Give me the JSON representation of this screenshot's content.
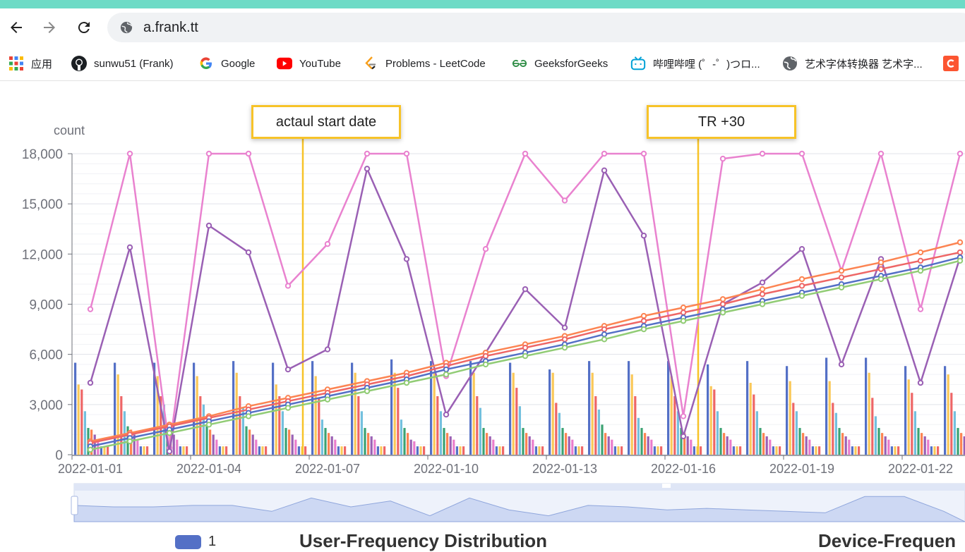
{
  "browser": {
    "url": "a.frank.tt",
    "bookmarks": [
      {
        "label": "应用",
        "icon": "apps-grid-icon"
      },
      {
        "label": "sunwu51 (Frank)",
        "icon": "github-icon"
      },
      {
        "label": "Google",
        "icon": "google-icon"
      },
      {
        "label": "YouTube",
        "icon": "youtube-icon"
      },
      {
        "label": "Problems - LeetCode",
        "icon": "leetcode-icon"
      },
      {
        "label": "GeeksforGeeks",
        "icon": "geeksforgeeks-icon"
      },
      {
        "label": "哔哩哔哩 (゜-゜)つロ...",
        "icon": "bilibili-icon"
      },
      {
        "label": "艺术字体转换器 艺术字...",
        "icon": "globe-icon"
      }
    ]
  },
  "annotations": {
    "start": "actaul start date",
    "tr": "TR +30"
  },
  "legend": {
    "label": "1",
    "color": "#5470c6"
  },
  "sections": {
    "user": "User-Frequency Distribution",
    "device": "Device-Frequen"
  },
  "chart_data": {
    "type": "line",
    "ylabel": "count",
    "ylim": [
      0,
      18000
    ],
    "yticks": [
      "0",
      "3,000",
      "6,000",
      "9,000",
      "12,000",
      "15,000",
      "18,000"
    ],
    "xtick_labels": [
      "2022-01-01",
      "2022-01-04",
      "2022-01-07",
      "2022-01-10",
      "2022-01-13",
      "2022-01-16",
      "2022-01-19",
      "2022-01-22"
    ],
    "x": [
      "2022-01-01",
      "2022-01-02",
      "2022-01-03",
      "2022-01-04",
      "2022-01-05",
      "2022-01-06",
      "2022-01-07",
      "2022-01-08",
      "2022-01-09",
      "2022-01-10",
      "2022-01-11",
      "2022-01-12",
      "2022-01-13",
      "2022-01-14",
      "2022-01-15",
      "2022-01-16",
      "2022-01-17",
      "2022-01-18",
      "2022-01-19",
      "2022-01-20",
      "2022-01-21",
      "2022-01-22",
      "2022-01-23"
    ],
    "markers": [
      {
        "label": "actaul start date",
        "x": "2022-01-07"
      },
      {
        "label": "TR +30",
        "x": "2022-01-17"
      }
    ],
    "lines": [
      {
        "color": "#e982cf",
        "values": [
          8700,
          18000,
          400,
          18000,
          18000,
          10100,
          12600,
          18000,
          18000,
          4700,
          12300,
          18000,
          15200,
          18000,
          18000,
          2300,
          17700,
          18000,
          18000,
          11000,
          18000,
          8700,
          18000
        ]
      },
      {
        "color": "#9a60b4",
        "values": [
          4300,
          12400,
          200,
          13700,
          12100,
          5100,
          6300,
          17100,
          11700,
          2400,
          6100,
          9900,
          7600,
          17000,
          13100,
          1100,
          9000,
          10300,
          12300,
          5400,
          11700,
          4300,
          11800
        ]
      },
      {
        "color": "#fc8452",
        "values": [
          800,
          1300,
          1800,
          2300,
          2900,
          3400,
          3900,
          4400,
          4900,
          5500,
          6100,
          6600,
          7100,
          7700,
          8300,
          8800,
          9300,
          9900,
          10500,
          11000,
          11500,
          12100,
          12700
        ]
      },
      {
        "color": "#ee6666",
        "values": [
          700,
          1200,
          1700,
          2200,
          2700,
          3200,
          3700,
          4200,
          4700,
          5300,
          5900,
          6400,
          6900,
          7500,
          8000,
          8500,
          9000,
          9600,
          10100,
          10600,
          11100,
          11600,
          12100
        ]
      },
      {
        "color": "#5470c6",
        "values": [
          500,
          1000,
          1500,
          2000,
          2500,
          3000,
          3500,
          4000,
          4500,
          5100,
          5600,
          6100,
          6600,
          7200,
          7700,
          8200,
          8700,
          9200,
          9700,
          10200,
          10700,
          11200,
          11800
        ]
      },
      {
        "color": "#91cc75",
        "values": [
          300,
          800,
          1300,
          1800,
          2300,
          2800,
          3300,
          3800,
          4300,
          4800,
          5400,
          5900,
          6400,
          6900,
          7500,
          8000,
          8500,
          9000,
          9500,
          10000,
          10500,
          11000,
          11600
        ]
      }
    ],
    "bar_colors": [
      "#5470c6",
      "#fac858",
      "#ee6666",
      "#73c0de",
      "#3ba272",
      "#fc8452",
      "#9a60b4",
      "#ea7ccc",
      "#5470c6",
      "#fac858",
      "#ee6666"
    ],
    "bar_groups": [
      [
        5500,
        4200,
        3900,
        2600,
        1600,
        1500,
        1200,
        900,
        500,
        500,
        500
      ],
      [
        5500,
        4800,
        3500,
        2600,
        1700,
        1500,
        1200,
        900,
        500,
        500,
        500
      ],
      [
        5500,
        4700,
        3500,
        3000,
        1700,
        1500,
        1200,
        900,
        500,
        500,
        500
      ],
      [
        5500,
        4700,
        3500,
        3000,
        1700,
        1500,
        1200,
        900,
        500,
        500,
        500
      ],
      [
        5600,
        4900,
        3500,
        2800,
        1700,
        1500,
        1200,
        900,
        500,
        500,
        500
      ],
      [
        5500,
        4200,
        3500,
        2600,
        1600,
        1500,
        1200,
        900,
        500,
        500,
        500
      ],
      [
        5600,
        4700,
        3400,
        2100,
        1600,
        1300,
        1100,
        900,
        500,
        500,
        500
      ],
      [
        5500,
        4900,
        3500,
        2600,
        1600,
        1300,
        1100,
        900,
        500,
        500,
        500
      ],
      [
        5700,
        4900,
        4000,
        2100,
        1600,
        1300,
        900,
        800,
        500,
        500,
        500
      ],
      [
        5600,
        4900,
        3500,
        2600,
        1600,
        1300,
        1100,
        900,
        500,
        500,
        500
      ],
      [
        5600,
        4900,
        3500,
        2800,
        1600,
        1300,
        1100,
        900,
        500,
        500,
        500
      ],
      [
        5500,
        4900,
        4000,
        2900,
        1600,
        1300,
        1100,
        900,
        500,
        500,
        500
      ],
      [
        5100,
        4900,
        3100,
        2500,
        1600,
        1300,
        1100,
        900,
        500,
        500,
        500
      ],
      [
        5600,
        4900,
        3500,
        2700,
        1800,
        1300,
        1100,
        900,
        500,
        500,
        500
      ],
      [
        5600,
        4800,
        3500,
        2200,
        1600,
        1300,
        1100,
        900,
        500,
        500,
        500
      ],
      [
        5600,
        4700,
        3500,
        2600,
        1600,
        1300,
        1100,
        900,
        500,
        500,
        500
      ],
      [
        5400,
        4100,
        3900,
        2600,
        1600,
        1300,
        1100,
        900,
        500,
        500,
        500
      ],
      [
        5600,
        4300,
        3600,
        2600,
        1600,
        1300,
        1100,
        900,
        500,
        500,
        500
      ],
      [
        5300,
        4400,
        3100,
        2600,
        1600,
        1300,
        1100,
        900,
        500,
        500,
        500
      ],
      [
        5800,
        4400,
        3100,
        2500,
        1600,
        1300,
        1100,
        900,
        500,
        500,
        500
      ],
      [
        5800,
        4900,
        3400,
        2300,
        1600,
        1300,
        1100,
        900,
        500,
        500,
        500
      ],
      [
        5300,
        4500,
        3700,
        2600,
        1600,
        1300,
        1100,
        900,
        500,
        500,
        500
      ],
      [
        5300,
        4800,
        3700,
        2600,
        1600,
        1300,
        1100,
        900,
        500,
        500,
        500
      ]
    ],
    "datazoom_values": [
      1100,
      1000,
      1000,
      1100,
      1100,
      700,
      1600,
      1000,
      1400,
      400,
      1600,
      800,
      400,
      1100,
      1000,
      800,
      900,
      800,
      700,
      600,
      1700,
      1700,
      700
    ]
  }
}
